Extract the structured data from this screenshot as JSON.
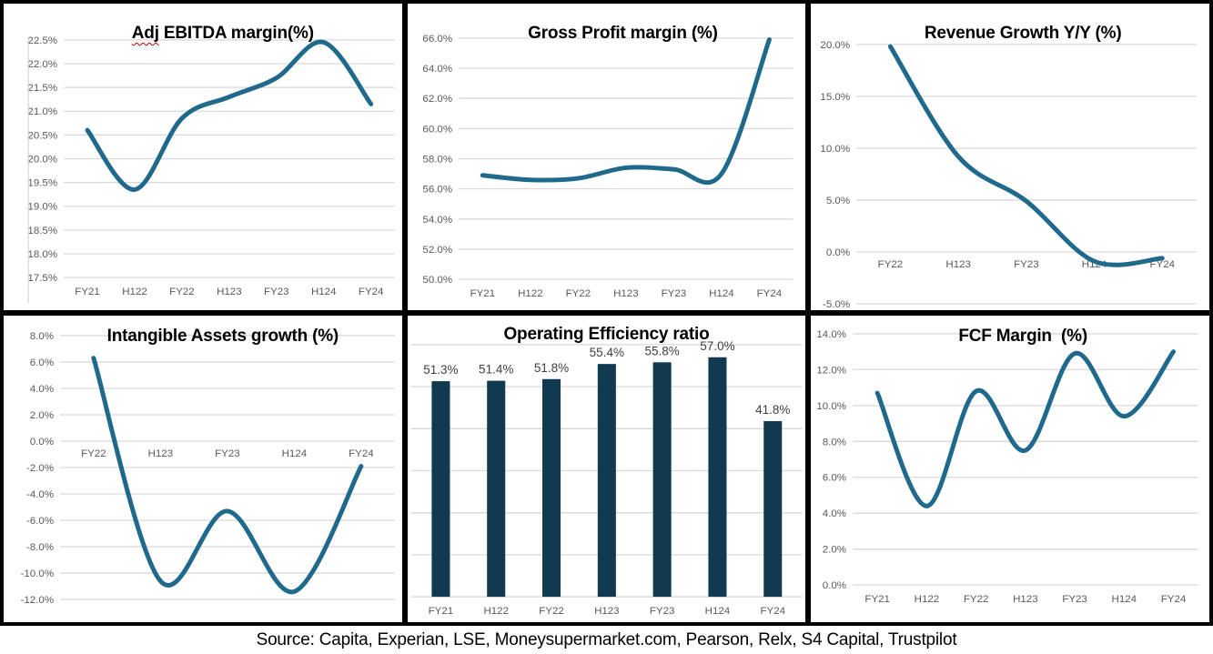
{
  "source_line": "Source: Capita, Experian, LSE, Moneysupermarket.com, Pearson, Relx, S4 Capital, Trustpilot",
  "colors": {
    "line": "#1F6A8C",
    "bar": "#113A50",
    "grid": "#D9D9D9",
    "axis_label": "#595959",
    "bar_label": "#404040",
    "title": "#000000",
    "spellcheck_underline": "#C00000",
    "panel_border": "#000000"
  },
  "chart_data": [
    {
      "type": "line",
      "title": "Adj EBITDA margin(%)",
      "title_spellcheck_word": "Adj",
      "title_after_spellcheck": " EBITDA margin(%)",
      "categories": [
        "FY21",
        "H122",
        "FY22",
        "H123",
        "FY23",
        "H124",
        "FY24"
      ],
      "values": [
        20.6,
        19.35,
        20.85,
        21.3,
        21.7,
        22.45,
        21.15
      ],
      "ylim": [
        17.5,
        22.5
      ],
      "ytick_step": 0.5,
      "ytick_label_format": "percent_1dp",
      "ytick_labels_visible": true,
      "x_axis_label_position": "below_plot",
      "grid": true,
      "legend": "none",
      "left_axis_line": true
    },
    {
      "type": "line",
      "title": "Gross Profit margin (%)",
      "categories": [
        "FY21",
        "H122",
        "FY22",
        "H123",
        "FY23",
        "H124",
        "FY24"
      ],
      "values": [
        56.9,
        56.6,
        56.7,
        57.4,
        57.3,
        57.0,
        65.9
      ],
      "ylim": [
        50,
        66
      ],
      "ytick_step": 2,
      "ytick_label_format": "percent_1dp",
      "ytick_labels_visible": true,
      "x_axis_label_position": "below_plot",
      "grid": true,
      "legend": "none"
    },
    {
      "type": "line",
      "title": "Revenue Growth Y/Y (%)",
      "categories": [
        "FY22",
        "H123",
        "FY23",
        "H124",
        "FY24"
      ],
      "values": [
        19.8,
        9.2,
        4.9,
        -0.9,
        -0.6
      ],
      "ylim": [
        -5,
        20
      ],
      "ytick_step": 5,
      "ytick_label_format": "percent_1dp",
      "ytick_labels_visible": true,
      "x_axis_label_position": "at_zero_line",
      "grid": true,
      "legend": "none"
    },
    {
      "type": "line",
      "title": "Intangible Assets growth (%)",
      "categories": [
        "FY22",
        "H123",
        "FY23",
        "H124",
        "FY24"
      ],
      "values": [
        6.3,
        -10.6,
        -5.3,
        -11.4,
        -1.9
      ],
      "ylim": [
        -12,
        8
      ],
      "ytick_step": 2,
      "ytick_label_format": "percent_1dp",
      "ytick_labels_visible": true,
      "x_axis_label_position": "at_zero_line",
      "grid": true,
      "legend": "none"
    },
    {
      "type": "bar",
      "title": "Operating Efficiency ratio",
      "categories": [
        "FY21",
        "H122",
        "FY22",
        "H123",
        "FY23",
        "H124",
        "FY24"
      ],
      "values": [
        51.3,
        51.4,
        51.8,
        55.4,
        55.8,
        57.0,
        41.8
      ],
      "data_labels": [
        "51.3%",
        "51.4%",
        "51.8%",
        "55.4%",
        "55.8%",
        "57.0%",
        "41.8%"
      ],
      "ylim": [
        0,
        60
      ],
      "ytick_step": 10,
      "ytick_labels_visible": false,
      "x_axis_label_position": "below_plot",
      "grid": true,
      "legend": "none"
    },
    {
      "type": "line",
      "title": "FCF Margin  (%)",
      "categories": [
        "FY21",
        "H122",
        "FY22",
        "H123",
        "FY23",
        "H124",
        "FY24"
      ],
      "values": [
        10.7,
        4.4,
        10.8,
        7.5,
        12.9,
        9.4,
        13.0
      ],
      "ylim": [
        0,
        14
      ],
      "ytick_step": 2,
      "ytick_label_format": "percent_1dp",
      "ytick_labels_visible": true,
      "x_axis_label_position": "below_plot",
      "grid": true,
      "legend": "none"
    }
  ]
}
